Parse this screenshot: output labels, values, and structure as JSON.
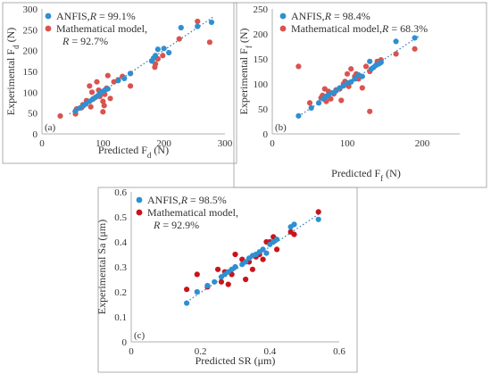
{
  "colors": {
    "anfis": "#2f8fd0",
    "math": "#d9534f",
    "math_c": "#c8141b",
    "trend": "#3a7fc2",
    "axis": "#b0b0b0",
    "text": "#333333"
  },
  "chart_data": [
    {
      "type": "scatter",
      "panel_label": "(a)",
      "xlabel": "Predicted F",
      "xlabel_sub": "d",
      "xlabel_unit": " (N)",
      "ylabel": "Experimental F",
      "ylabel_sub": "d",
      "ylabel_unit": " (N)",
      "xlim": [
        0,
        300
      ],
      "ylim": [
        0,
        300
      ],
      "xticks": [
        0,
        100,
        200,
        300
      ],
      "yticks": [
        0,
        50,
        100,
        150,
        200,
        250,
        300
      ],
      "xtick_labels": [
        "0",
        "100",
        "200",
        "300"
      ],
      "ytick_labels": [
        "0",
        "50",
        "100",
        "150",
        "200",
        "250",
        "300"
      ],
      "grid": false,
      "legend_position": "top-left",
      "trendline": [
        [
          45,
          48
        ],
        [
          280,
          280
        ]
      ],
      "series": [
        {
          "name": "ANFIS,",
          "name_italic": "R",
          "name_value": " = 99.1%",
          "color": "anfis",
          "points": [
            [
              55,
              55
            ],
            [
              62,
              62
            ],
            [
              68,
              68
            ],
            [
              72,
              72
            ],
            [
              78,
              78
            ],
            [
              83,
              83
            ],
            [
              88,
              88
            ],
            [
              92,
              92
            ],
            [
              95,
              98
            ],
            [
              100,
              102
            ],
            [
              104,
              106
            ],
            [
              108,
              108
            ],
            [
              125,
              128
            ],
            [
              135,
              133
            ],
            [
              145,
              145
            ],
            [
              180,
              175
            ],
            [
              183,
              182
            ],
            [
              186,
              188
            ],
            [
              190,
              203
            ],
            [
              200,
              205
            ],
            [
              228,
              255
            ],
            [
              255,
              258
            ],
            [
              278,
              268
            ],
            [
              208,
              195
            ]
          ]
        },
        {
          "name": "Mathematical model,",
          "name_line2_italic": "R",
          "name_line2_value": " = 92.7%",
          "color": "math",
          "points": [
            [
              30,
              43
            ],
            [
              55,
              48
            ],
            [
              57,
              60
            ],
            [
              65,
              63
            ],
            [
              67,
              70
            ],
            [
              73,
              80
            ],
            [
              78,
              115
            ],
            [
              80,
              65
            ],
            [
              82,
              100
            ],
            [
              85,
              85
            ],
            [
              90,
              125
            ],
            [
              93,
              105
            ],
            [
              95,
              90
            ],
            [
              97,
              100
            ],
            [
              100,
              78
            ],
            [
              100,
              53
            ],
            [
              102,
              68
            ],
            [
              103,
              95
            ],
            [
              106,
              110
            ],
            [
              108,
              140
            ],
            [
              112,
              85
            ],
            [
              118,
              125
            ],
            [
              125,
              130
            ],
            [
              132,
              138
            ],
            [
              145,
              145
            ],
            [
              145,
              115
            ],
            [
              180,
              175
            ],
            [
              185,
              160
            ],
            [
              186,
              168
            ],
            [
              190,
              180
            ],
            [
              198,
              188
            ],
            [
              225,
              228
            ],
            [
              255,
              270
            ],
            [
              275,
              220
            ]
          ]
        }
      ]
    },
    {
      "type": "scatter",
      "panel_label": "(b)",
      "xlabel": "Predicted F",
      "xlabel_sub": "f",
      "xlabel_unit": " (N)",
      "ylabel": "Experimental F",
      "ylabel_sub": "f",
      "ylabel_unit": " (N)",
      "xlim": [
        0,
        250
      ],
      "ylim": [
        0,
        250
      ],
      "xticks": [
        0,
        100,
        200
      ],
      "yticks": [
        0,
        50,
        100,
        150,
        200,
        250
      ],
      "xtick_labels": [
        "0",
        "100",
        "200"
      ],
      "ytick_labels": [
        "0",
        "50",
        "100",
        "150",
        "200",
        "250"
      ],
      "grid": false,
      "legend_position": "top-left",
      "trendline": [
        [
          35,
          35
        ],
        [
          195,
          195
        ]
      ],
      "series": [
        {
          "name": "ANFIS,",
          "name_italic": "R",
          "name_value": " = 98.4%",
          "color": "anfis",
          "points": [
            [
              35,
              36
            ],
            [
              52,
              52
            ],
            [
              62,
              62
            ],
            [
              68,
              70
            ],
            [
              72,
              75
            ],
            [
              75,
              78
            ],
            [
              80,
              82
            ],
            [
              85,
              86
            ],
            [
              90,
              92
            ],
            [
              95,
              96
            ],
            [
              100,
              102
            ],
            [
              105,
              104
            ],
            [
              110,
              110
            ],
            [
              115,
              118
            ],
            [
              120,
              115
            ],
            [
              130,
              145
            ],
            [
              132,
              130
            ],
            [
              135,
              133
            ],
            [
              138,
              137
            ],
            [
              142,
              140
            ],
            [
              145,
              143
            ],
            [
              165,
              185
            ],
            [
              190,
              192
            ]
          ]
        },
        {
          "name": "Mathematical model,",
          "name_italic": "R",
          "name_value": " = 68.3%",
          "color": "math",
          "points": [
            [
              35,
              135
            ],
            [
              50,
              62
            ],
            [
              65,
              72
            ],
            [
              67,
              77
            ],
            [
              70,
              90
            ],
            [
              72,
              65
            ],
            [
              75,
              85
            ],
            [
              78,
              70
            ],
            [
              82,
              80
            ],
            [
              85,
              88
            ],
            [
              90,
              90
            ],
            [
              92,
              67
            ],
            [
              95,
              100
            ],
            [
              97,
              105
            ],
            [
              100,
              120
            ],
            [
              102,
              95
            ],
            [
              105,
              130
            ],
            [
              110,
              115
            ],
            [
              112,
              120
            ],
            [
              115,
              110
            ],
            [
              120,
              92
            ],
            [
              125,
              135
            ],
            [
              130,
              125
            ],
            [
              130,
              45
            ],
            [
              140,
              145
            ],
            [
              145,
              148
            ],
            [
              165,
              160
            ],
            [
              190,
              170
            ]
          ]
        }
      ]
    },
    {
      "type": "scatter",
      "panel_label": "(c)",
      "xlabel": "Predicted SR (μm)",
      "ylabel": "Experimental Sa (μm)",
      "xlim": [
        0,
        0.6
      ],
      "ylim": [
        0,
        0.6
      ],
      "xticks": [
        0,
        0.2,
        0.4,
        0.6
      ],
      "yticks": [
        0,
        0.1,
        0.2,
        0.3,
        0.4,
        0.5,
        0.6
      ],
      "xtick_labels": [
        "0",
        "0.2",
        "0.4",
        "0.6"
      ],
      "ytick_labels": [
        "0",
        "0.1",
        "0.2",
        "0.3",
        "0.4",
        "0.5",
        "0.6"
      ],
      "grid": false,
      "legend_position": "top-left",
      "trendline": [
        [
          0.16,
          0.16
        ],
        [
          0.54,
          0.51
        ]
      ],
      "series": [
        {
          "name": "ANFIS,",
          "name_italic": "R",
          "name_value": " = 98.5%",
          "color": "anfis",
          "points": [
            [
              0.16,
              0.155
            ],
            [
              0.19,
              0.2
            ],
            [
              0.22,
              0.225
            ],
            [
              0.24,
              0.24
            ],
            [
              0.26,
              0.26
            ],
            [
              0.27,
              0.27
            ],
            [
              0.28,
              0.28
            ],
            [
              0.29,
              0.29
            ],
            [
              0.3,
              0.3
            ],
            [
              0.32,
              0.31
            ],
            [
              0.33,
              0.32
            ],
            [
              0.34,
              0.335
            ],
            [
              0.35,
              0.345
            ],
            [
              0.36,
              0.35
            ],
            [
              0.37,
              0.36
            ],
            [
              0.38,
              0.37
            ],
            [
              0.39,
              0.355
            ],
            [
              0.4,
              0.39
            ],
            [
              0.41,
              0.4
            ],
            [
              0.42,
              0.41
            ],
            [
              0.46,
              0.46
            ],
            [
              0.47,
              0.47
            ],
            [
              0.54,
              0.49
            ]
          ]
        },
        {
          "name": "Mathematical model,",
          "name_line2_italic": "R",
          "name_line2_value": " = 92.9%",
          "color": "math_c",
          "points": [
            [
              0.16,
              0.21
            ],
            [
              0.19,
              0.27
            ],
            [
              0.22,
              0.22
            ],
            [
              0.25,
              0.29
            ],
            [
              0.26,
              0.24
            ],
            [
              0.27,
              0.28
            ],
            [
              0.28,
              0.23
            ],
            [
              0.29,
              0.27
            ],
            [
              0.3,
              0.35
            ],
            [
              0.32,
              0.33
            ],
            [
              0.33,
              0.25
            ],
            [
              0.34,
              0.32
            ],
            [
              0.35,
              0.29
            ],
            [
              0.36,
              0.34
            ],
            [
              0.37,
              0.35
            ],
            [
              0.38,
              0.33
            ],
            [
              0.39,
              0.4
            ],
            [
              0.4,
              0.4
            ],
            [
              0.41,
              0.42
            ],
            [
              0.42,
              0.37
            ],
            [
              0.46,
              0.44
            ],
            [
              0.47,
              0.43
            ],
            [
              0.54,
              0.52
            ]
          ]
        }
      ]
    }
  ]
}
